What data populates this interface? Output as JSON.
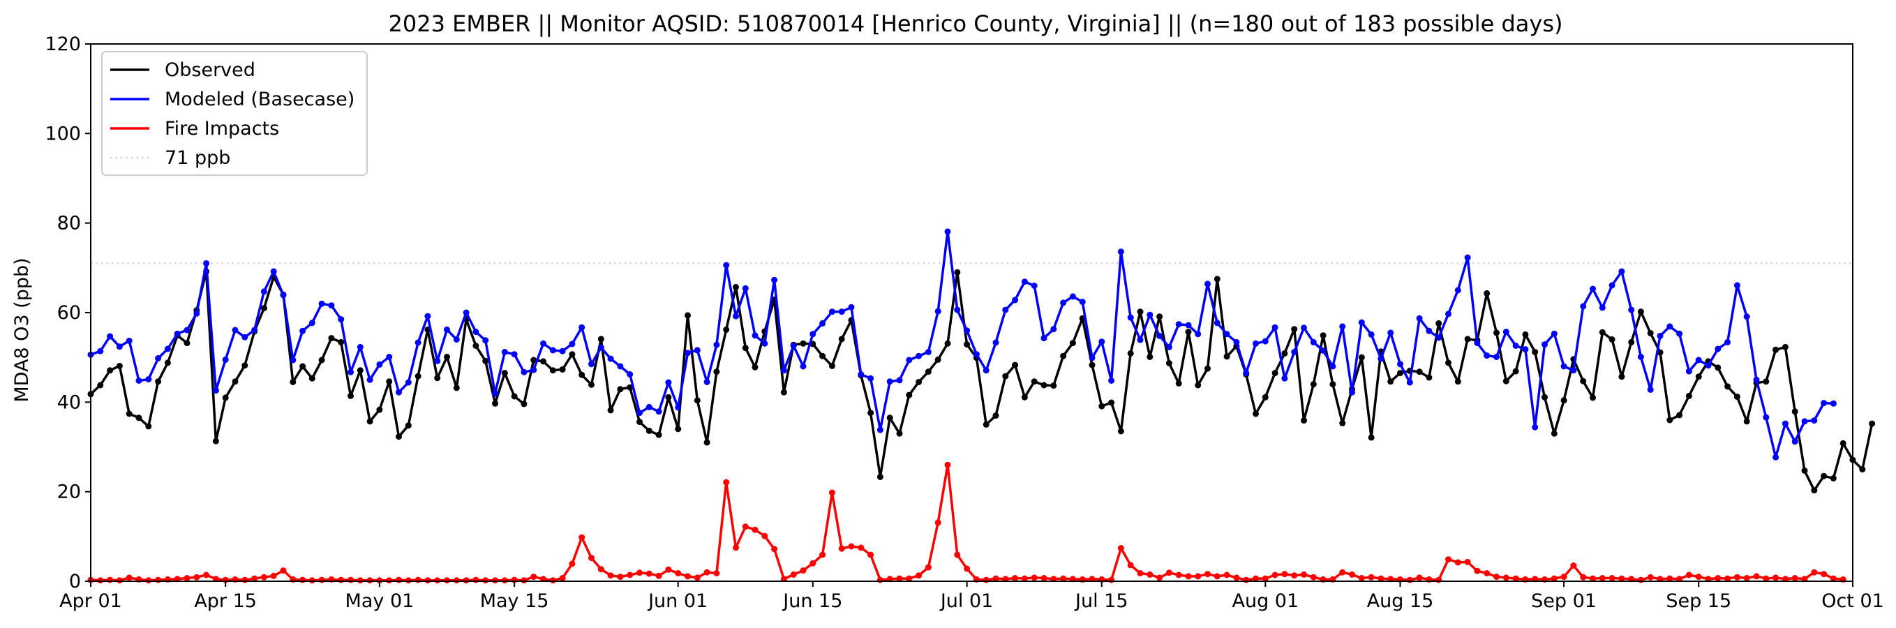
{
  "chart_data": {
    "type": "line",
    "title": "2023 EMBER || Monitor AQSID: 510870014 [Henrico County, Virginia] || (n=180 out of 183 possible days)",
    "ylabel": "MDA8 O3 (ppb)",
    "xlabel": "",
    "ylim": [
      0,
      120
    ],
    "xlim": [
      "2023-04-01",
      "2023-10-01"
    ],
    "yticks": [
      0,
      20,
      40,
      60,
      80,
      100,
      120
    ],
    "xticks": [
      {
        "date": "2023-04-01",
        "label": "Apr 01"
      },
      {
        "date": "2023-04-15",
        "label": "Apr 15"
      },
      {
        "date": "2023-05-01",
        "label": "May 01"
      },
      {
        "date": "2023-05-15",
        "label": "May 15"
      },
      {
        "date": "2023-06-01",
        "label": "Jun 01"
      },
      {
        "date": "2023-06-15",
        "label": "Jun 15"
      },
      {
        "date": "2023-07-01",
        "label": "Jul 01"
      },
      {
        "date": "2023-07-15",
        "label": "Jul 15"
      },
      {
        "date": "2023-08-01",
        "label": "Aug 01"
      },
      {
        "date": "2023-08-15",
        "label": "Aug 15"
      },
      {
        "date": "2023-09-01",
        "label": "Sep 01"
      },
      {
        "date": "2023-09-15",
        "label": "Sep 15"
      },
      {
        "date": "2023-10-01",
        "label": "Oct 01"
      }
    ],
    "x_start_date": "2023-04-01",
    "legend_position": "top-left",
    "grid": false,
    "threshold": {
      "name": "71 ppb",
      "value": 71,
      "color": "#d3d3d3",
      "style": "dotted"
    },
    "series": [
      {
        "name": "Observed",
        "color": "#000000",
        "values": [
          41.8,
          43.8,
          47.1,
          48.1,
          37.4,
          36.5,
          34.6,
          44.6,
          48.8,
          54.9,
          53.2,
          60.5,
          69.2,
          31.3,
          41.0,
          44.6,
          48.2,
          55.8,
          61.0,
          68.0,
          64.0,
          44.5,
          48.0,
          45.3,
          49.4,
          54.3,
          53.4,
          41.4,
          47.1,
          35.7,
          38.3,
          44.6,
          32.3,
          34.8,
          45.8,
          56.2,
          45.4,
          50.1,
          43.2,
          58.5,
          52.6,
          49.2,
          39.7,
          46.5,
          41.3,
          39.6,
          49.4,
          49.1,
          47.1,
          47.3,
          50.7,
          46.1,
          43.9,
          54.1,
          38.2,
          42.9,
          43.3,
          35.6,
          33.6,
          32.7,
          41.1,
          34.0,
          59.4,
          40.4,
          31.0,
          46.8,
          56.2,
          65.7,
          52.1,
          47.8,
          55.8,
          62.9,
          42.2,
          52.8,
          53.1,
          53.0,
          50.3,
          48.1,
          54.1,
          58.3,
          46.0,
          37.6,
          23.3,
          36.5,
          33.0,
          41.6,
          44.5,
          46.8,
          49.5,
          53.1,
          69.0,
          52.9,
          49.9,
          35.0,
          37.0,
          45.8,
          48.3,
          41.1,
          44.6,
          43.8,
          43.7,
          50.3,
          53.2,
          58.7,
          48.3,
          39.1,
          39.9,
          33.5,
          50.9,
          60.2,
          50.1,
          59.1,
          48.7,
          44.2,
          55.7,
          43.8,
          47.5,
          67.5,
          50.2,
          52.5,
          46.2,
          37.4,
          41.1,
          46.5,
          50.9,
          56.3,
          35.9,
          44.0,
          54.9,
          44.0,
          35.3,
          42.9,
          50.0,
          32.1,
          51.3,
          44.6,
          46.5,
          47.0,
          46.8,
          45.5,
          57.6,
          48.8,
          44.6,
          54.1,
          53.8,
          64.3,
          55.5,
          44.7,
          46.9,
          55.1,
          51.2,
          41.1,
          33.0,
          40.4,
          49.6,
          44.7,
          41.0,
          55.6,
          54.0,
          45.7,
          53.4,
          60.2,
          55.4,
          51.1,
          36.0,
          37.1,
          41.4,
          45.7,
          49.1,
          47.7,
          43.5,
          41.2,
          35.7,
          44.3,
          44.6,
          51.7,
          52.3,
          37.9,
          24.7,
          20.3,
          23.5,
          23.0,
          30.8,
          27.1,
          25.0,
          35.2
        ]
      },
      {
        "name": "Modeled (Basecase)",
        "color": "#0000ff",
        "values": [
          50.6,
          51.4,
          54.7,
          52.4,
          53.7,
          44.8,
          45.1,
          49.8,
          51.9,
          55.3,
          56.1,
          59.8,
          71.0,
          42.6,
          49.5,
          56.1,
          54.5,
          56.1,
          64.7,
          69.2,
          63.9,
          49.4,
          55.9,
          57.7,
          62.0,
          61.6,
          58.5,
          46.7,
          52.3,
          45.0,
          48.4,
          50.1,
          42.2,
          44.4,
          53.3,
          59.2,
          49.2,
          56.2,
          54.0,
          60.0,
          55.7,
          53.8,
          41.9,
          51.2,
          50.7,
          46.7,
          47.2,
          53.1,
          51.6,
          51.4,
          53.0,
          56.7,
          48.5,
          52.2,
          49.7,
          48.0,
          46.2,
          37.6,
          38.9,
          37.9,
          44.4,
          38.8,
          51.0,
          51.6,
          44.5,
          52.8,
          70.6,
          59.2,
          65.4,
          54.9,
          53.1,
          67.3,
          47.1,
          52.6,
          48.0,
          55.2,
          57.6,
          60.2,
          60.2,
          61.2,
          46.2,
          45.3,
          33.8,
          44.6,
          44.9,
          49.4,
          50.3,
          51.2,
          60.3,
          78.1,
          60.6,
          56.0,
          50.7,
          47.1,
          53.3,
          60.6,
          62.8,
          66.9,
          66.0,
          54.3,
          56.3,
          62.2,
          63.6,
          62.4,
          49.9,
          53.5,
          44.8,
          73.6,
          58.9,
          53.9,
          59.5,
          54.8,
          52.3,
          57.4,
          57.2,
          55.2,
          66.4,
          57.7,
          55.2,
          53.4,
          46.5,
          53.1,
          53.6,
          56.7,
          45.3,
          51.2,
          56.6,
          53.4,
          51.5,
          48.0,
          56.9,
          42.2,
          57.8,
          55.1,
          49.7,
          55.5,
          48.5,
          44.4,
          58.7,
          55.9,
          54.4,
          59.7,
          65.0,
          72.3,
          53.2,
          50.4,
          50.1,
          55.7,
          52.6,
          51.8,
          34.4,
          52.9,
          55.3,
          48.0,
          47.1,
          61.4,
          65.3,
          61.1,
          66.1,
          69.2,
          60.6,
          50.1,
          42.8,
          54.8,
          56.9,
          55.3,
          46.9,
          49.4,
          48.2,
          51.9,
          53.4,
          66.1,
          59.1,
          45.0,
          36.6,
          27.7,
          35.2,
          31.2,
          35.7,
          35.9,
          39.8,
          39.7
        ]
      },
      {
        "name": "Fire Impacts",
        "color": "#ff0000",
        "values": [
          0.3,
          0.2,
          0.3,
          0.2,
          0.8,
          0.4,
          0.2,
          0.3,
          0.4,
          0.5,
          0.7,
          0.9,
          1.4,
          0.5,
          0.3,
          0.4,
          0.3,
          0.6,
          0.9,
          1.2,
          2.4,
          0.4,
          0.3,
          0.2,
          0.3,
          0.4,
          0.3,
          0.3,
          0.2,
          0.2,
          0.2,
          0.2,
          0.3,
          0.2,
          0.3,
          0.2,
          0.2,
          0.2,
          0.2,
          0.2,
          0.3,
          0.2,
          0.2,
          0.2,
          0.3,
          0.2,
          1.0,
          0.5,
          0.2,
          0.7,
          3.9,
          9.8,
          5.2,
          2.7,
          1.3,
          1.0,
          1.4,
          1.9,
          1.7,
          1.2,
          2.6,
          1.8,
          1.1,
          0.8,
          2.0,
          1.8,
          22.1,
          7.5,
          12.2,
          11.5,
          10.1,
          7.2,
          0.5,
          1.5,
          2.4,
          4.0,
          5.9,
          19.8,
          7.3,
          7.8,
          7.5,
          5.9,
          0.3,
          0.5,
          0.6,
          0.6,
          1.3,
          3.1,
          13.1,
          26.0,
          5.9,
          2.8,
          0.4,
          0.3,
          0.6,
          0.5,
          0.7,
          0.6,
          0.8,
          0.7,
          0.5,
          0.6,
          0.5,
          0.4,
          0.5,
          0.4,
          0.3,
          7.4,
          3.6,
          1.8,
          1.5,
          0.8,
          1.9,
          1.4,
          1.1,
          1.1,
          1.6,
          1.1,
          1.4,
          0.8,
          0.3,
          0.6,
          0.6,
          1.4,
          1.6,
          1.3,
          1.5,
          0.9,
          0.4,
          0.4,
          2.0,
          1.5,
          0.7,
          0.9,
          0.6,
          0.5,
          0.4,
          0.3,
          0.8,
          0.4,
          0.3,
          4.9,
          4.2,
          4.3,
          2.3,
          1.8,
          1.0,
          0.8,
          0.6,
          0.4,
          0.5,
          0.4,
          0.6,
          1.0,
          3.5,
          0.9,
          0.6,
          0.7,
          0.7,
          0.6,
          0.5,
          0.3,
          0.9,
          0.5,
          0.6,
          0.5,
          1.4,
          1.0,
          0.5,
          0.7,
          0.6,
          0.9,
          0.7,
          1.1,
          0.6,
          0.8,
          0.5,
          0.7,
          0.5,
          2.0,
          1.6,
          0.6,
          0.4
        ]
      }
    ]
  }
}
